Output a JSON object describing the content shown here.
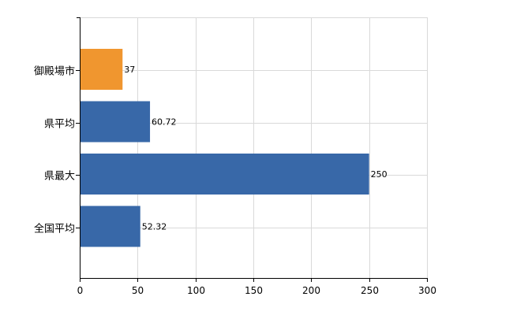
{
  "chart_data": {
    "type": "bar",
    "orientation": "horizontal",
    "categories": [
      "御殿場市",
      "県平均",
      "県最大",
      "全国平均"
    ],
    "values": [
      37,
      60.72,
      250,
      52.32
    ],
    "data_labels": [
      "37",
      "60.72",
      "250",
      "52.32"
    ],
    "bar_colors": [
      "#F0962F",
      "#3868A8",
      "#3868A8",
      "#3868A8"
    ],
    "xlim": [
      0,
      300
    ],
    "xticks": [
      0,
      50,
      100,
      150,
      200,
      250,
      300
    ],
    "xtick_labels": [
      "0",
      "50",
      "100",
      "150",
      "200",
      "250",
      "300"
    ],
    "grid": true,
    "title": "",
    "xlabel": "",
    "ylabel": ""
  }
}
